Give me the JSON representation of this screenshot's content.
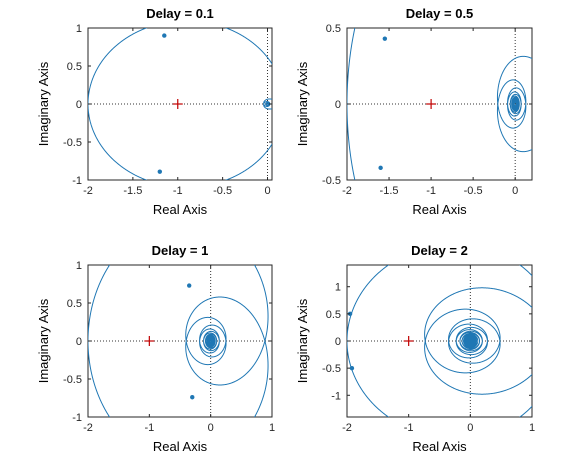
{
  "figure": {
    "background": "#ffffff"
  },
  "colors": {
    "curve": "#1f77b4",
    "critical": "#c00000",
    "axes": "#262626",
    "guide": "#333333"
  },
  "chart_data": [
    {
      "type": "line",
      "title": "Delay = 0.1",
      "xlabel": "Real Axis",
      "ylabel": "Imaginary Axis",
      "xlim": [
        -2,
        0.05
      ],
      "ylim": [
        -1,
        1
      ],
      "xticks": [
        -2,
        -1.5,
        -1,
        -0.5,
        0
      ],
      "xtick_labels": [
        "-2",
        "-1.5",
        "-1",
        "-0.5",
        "0"
      ],
      "yticks": [
        -1,
        -0.5,
        0,
        0.5,
        1
      ],
      "ytick_labels": [
        "-1",
        "-0.5",
        "0",
        "0.5",
        "1"
      ],
      "delay": 0.1,
      "critical_point": [
        -1,
        0
      ],
      "arrows": [
        [
          -1.15,
          0.9
        ],
        [
          -1.2,
          -0.89
        ]
      ],
      "grid": false
    },
    {
      "type": "line",
      "title": "Delay = 0.5",
      "xlabel": "Real Axis",
      "ylabel": "Imaginary Axis",
      "xlim": [
        -2,
        0.2
      ],
      "ylim": [
        -0.5,
        0.5
      ],
      "xticks": [
        -2,
        -1.5,
        -1,
        -0.5,
        0
      ],
      "xtick_labels": [
        "-2",
        "-1.5",
        "-1",
        "-0.5",
        "0"
      ],
      "yticks": [
        -0.5,
        0,
        0.5
      ],
      "ytick_labels": [
        "-0.5",
        "0",
        "0.5"
      ],
      "delay": 0.5,
      "critical_point": [
        -1,
        0
      ],
      "arrows": [
        [
          -1.55,
          0.43
        ],
        [
          -1.6,
          -0.42
        ]
      ],
      "grid": false
    },
    {
      "type": "line",
      "title": "Delay = 1",
      "xlabel": "Real Axis",
      "ylabel": "Imaginary Axis",
      "xlim": [
        -2,
        1
      ],
      "ylim": [
        -1,
        1
      ],
      "xticks": [
        -2,
        -1,
        0,
        1
      ],
      "xtick_labels": [
        "-2",
        "-1",
        "0",
        "1"
      ],
      "yticks": [
        -1,
        -0.5,
        0,
        0.5,
        1
      ],
      "ytick_labels": [
        "-1",
        "-0.5",
        "0",
        "0.5",
        "1"
      ],
      "delay": 1,
      "critical_point": [
        -1,
        0
      ],
      "arrows": [
        [
          -0.35,
          0.73
        ],
        [
          -0.3,
          -0.74
        ]
      ],
      "grid": false
    },
    {
      "type": "line",
      "title": "Delay = 2",
      "xlabel": "Real Axis",
      "ylabel": "Imaginary Axis",
      "xlim": [
        -2,
        1
      ],
      "ylim": [
        -1.4,
        1.4
      ],
      "xticks": [
        -2,
        -1,
        0,
        1
      ],
      "xtick_labels": [
        "-2",
        "-1",
        "0",
        "1"
      ],
      "yticks": [
        -1,
        -0.5,
        0,
        0.5,
        1
      ],
      "ytick_labels": [
        "-1",
        "-0.5",
        "0",
        "0.5",
        "1"
      ],
      "delay": 2,
      "critical_point": [
        -1,
        0
      ],
      "arrows": [
        [
          -1.95,
          0.5
        ],
        [
          -1.92,
          -0.5
        ]
      ],
      "grid": false
    }
  ]
}
